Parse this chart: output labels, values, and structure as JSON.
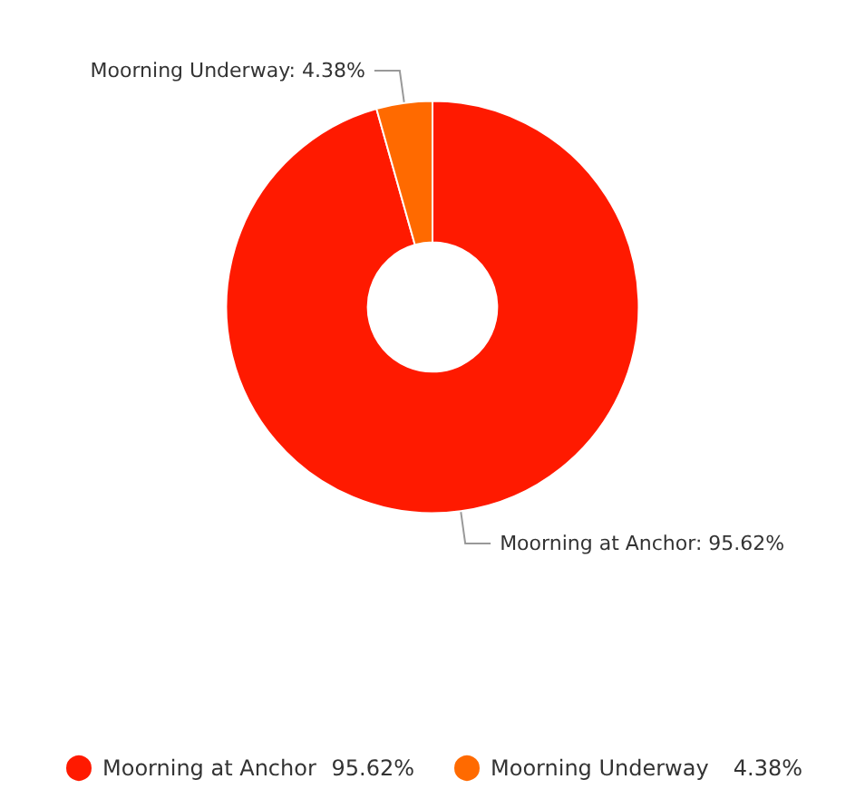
{
  "chart_data": {
    "type": "donut",
    "categories": [
      "Moorning at Anchor",
      "Moorning Underway"
    ],
    "values": [
      95.62,
      4.38
    ],
    "colors": [
      "#ff1a00",
      "#ff6a00"
    ],
    "value_labels": [
      "95.62%",
      "4.38%"
    ],
    "annotations": [
      "Moorning at Anchor: 95.62%",
      "Moorning Underway: 4.38%"
    ],
    "legend": "bottom"
  }
}
